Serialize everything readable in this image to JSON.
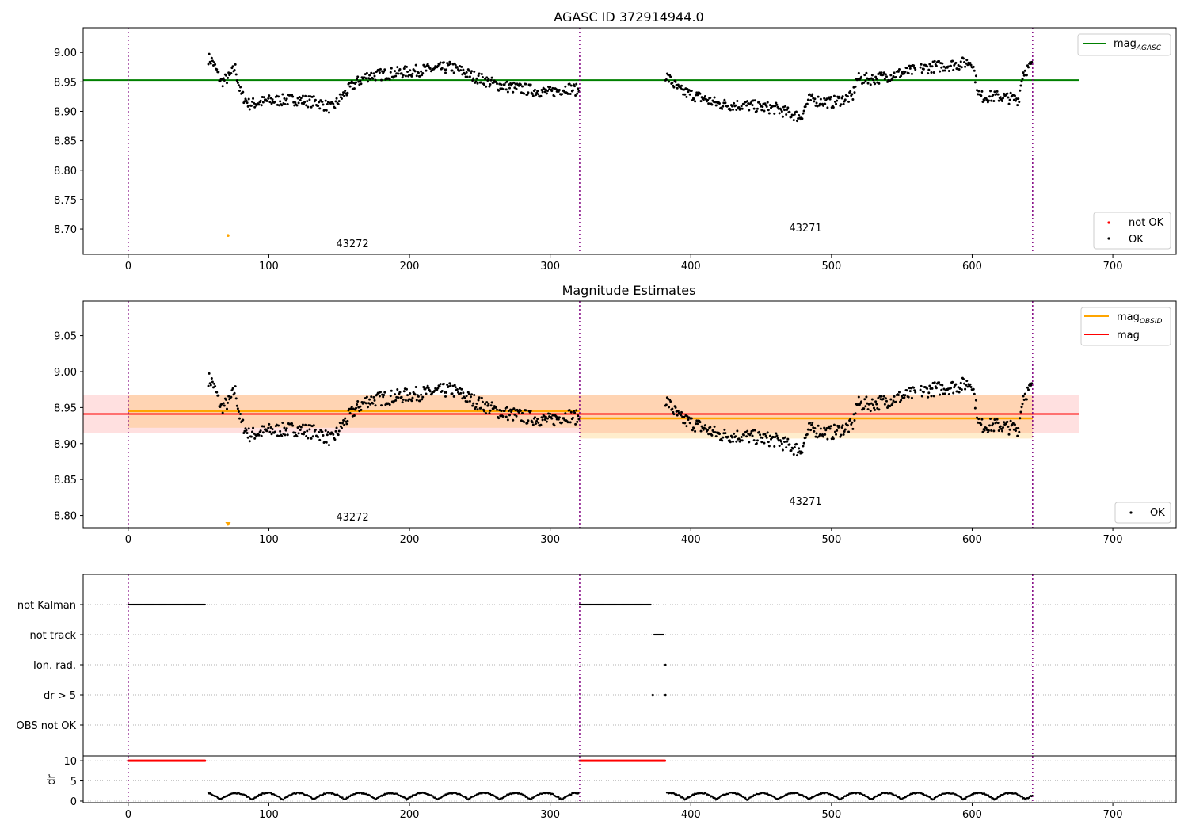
{
  "figure": {
    "agasc_id": "372914944.0",
    "obsids": [
      "43272",
      "43271"
    ],
    "obs_boundaries": [
      0,
      321,
      643
    ]
  },
  "chart_data": [
    {
      "id": "agasc_mag",
      "type": "scatter",
      "title": "AGASC ID 372914944.0",
      "xlim": [
        -32,
        745
      ],
      "ylim": [
        8.657,
        9.042
      ],
      "xticks": [
        0,
        100,
        200,
        300,
        400,
        500,
        600,
        700
      ],
      "yticks": [
        8.7,
        8.75,
        8.8,
        8.85,
        8.9,
        8.95,
        9.0
      ],
      "ytick_labels": [
        "8.70",
        "8.75",
        "8.80",
        "8.85",
        "8.90",
        "8.95",
        "9.00"
      ],
      "hlines": [
        {
          "name": "mag_AGASC",
          "value": 8.953,
          "x_range": [
            -32,
            676
          ],
          "color": "#008000"
        }
      ],
      "not_ok_point": {
        "x": 71,
        "y": 8.689,
        "color": "#FFA500"
      },
      "annotations": [
        {
          "text": "43272",
          "x": 160,
          "y": 8.673
        },
        {
          "text": "43271",
          "x": 481,
          "y": 8.697
        }
      ],
      "legends": [
        {
          "entries": [
            {
              "label": "mag",
              "sub": "AGASC",
              "marker": "line",
              "color": "#008000"
            }
          ]
        },
        {
          "entries": [
            {
              "label": "not OK",
              "marker": "dot",
              "color": "#ff0000"
            },
            {
              "label": "OK",
              "marker": "dot",
              "color": "#000000"
            }
          ]
        }
      ]
    },
    {
      "id": "mag_estimates",
      "type": "scatter",
      "title": "Magnitude Estimates",
      "xlim": [
        -32,
        745
      ],
      "ylim": [
        8.783,
        9.098
      ],
      "xticks": [
        0,
        100,
        200,
        300,
        400,
        500,
        600,
        700
      ],
      "yticks": [
        8.8,
        8.85,
        8.9,
        8.95,
        9.0,
        9.05
      ],
      "ytick_labels": [
        "8.80",
        "8.85",
        "8.90",
        "8.95",
        "9.00",
        "9.05"
      ],
      "obs_mags": [
        {
          "x": [
            0,
            321
          ],
          "mag": 8.945,
          "band": [
            8.922,
            8.968
          ]
        },
        {
          "x": [
            321,
            643
          ],
          "mag": 8.935,
          "band": [
            8.907,
            8.968
          ]
        }
      ],
      "mean_mag": {
        "value": 8.941,
        "band": [
          8.915,
          8.968
        ],
        "x_range": [
          -32,
          676
        ]
      },
      "lower_marker": {
        "x": 71,
        "y": 8.787,
        "color": "#FFA500"
      },
      "annotations": [
        {
          "text": "43272",
          "x": 160,
          "y": 8.793
        },
        {
          "text": "43271",
          "x": 481,
          "y": 8.818
        }
      ],
      "legends": [
        {
          "entries": [
            {
              "label": "mag",
              "sub": "OBSID",
              "marker": "line",
              "color": "#FFA500"
            },
            {
              "label": "mag",
              "marker": "line",
              "color": "#ff0000"
            }
          ]
        },
        {
          "entries": [
            {
              "label": "OK",
              "marker": "dot",
              "color": "#000000"
            }
          ]
        }
      ]
    },
    {
      "id": "flags",
      "type": "scatter",
      "xlim": [
        -32,
        745
      ],
      "categories": [
        "not Kalman",
        "not track",
        "Ion. rad.",
        "dr > 5",
        "OBS not OK"
      ],
      "flag_ranges": [
        {
          "category": "not Kalman",
          "ranges": [
            [
              0,
              55
            ],
            [
              321,
              372
            ]
          ]
        },
        {
          "category": "not track",
          "ranges": [
            [
              374,
              381
            ]
          ]
        },
        {
          "category": "Ion. rad.",
          "points": [
            382
          ]
        },
        {
          "category": "dr > 5",
          "points": [
            373,
            382
          ]
        }
      ]
    },
    {
      "id": "dr",
      "type": "scatter",
      "ylabel": "dr",
      "xlim": [
        -32,
        745
      ],
      "ylim": [
        -0.4,
        11.2
      ],
      "xticks": [
        0,
        100,
        200,
        300,
        400,
        500,
        600,
        700
      ],
      "yticks": [
        0,
        5,
        10
      ],
      "ytick_labels": [
        "0",
        "5",
        "10"
      ],
      "clipped_ranges": [
        [
          0,
          55
        ],
        [
          321,
          382
        ]
      ],
      "clipped_value": 10
    }
  ]
}
